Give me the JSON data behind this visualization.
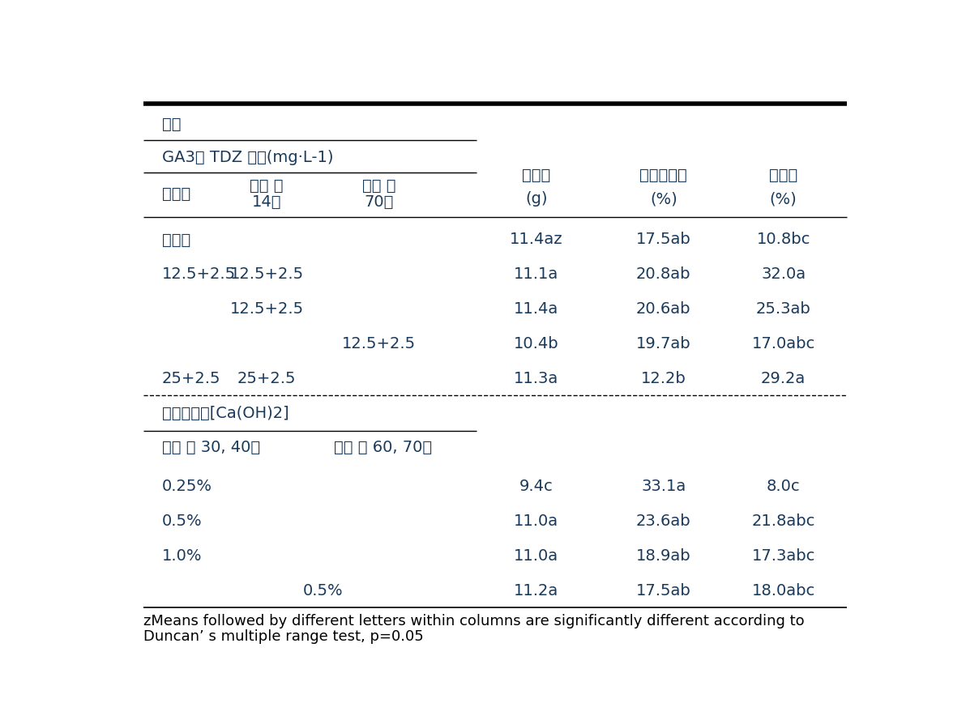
{
  "background_color": "#ffffff",
  "text_color": "#000000",
  "blue_color": "#1a3a5c",
  "figsize": [
    11.92,
    8.68
  ],
  "dpi": 100,
  "section1_header": "처리",
  "section1_subheader": "GA3및 TDZ 혼용(mg·L-1)",
  "col1_header_line1": "만개기",
  "col2_header_line1": "만개 후",
  "col2_header_line2": "14일",
  "col3_header_line1": "만개 후",
  "col3_header_line2": "70일",
  "col4_header_line1": "과립중",
  "col4_header_line2": "(g)",
  "col5_header_line1": "무른과립율",
  "col5_header_line2": "(%)",
  "col6_header_line1": "열과율",
  "col6_header_line2": "(%)",
  "section2_header": "수산화칼슈[Ca(OH)2]",
  "col2b_header": "만개 후 30, 40일",
  "col3b_header": "만개 후 60, 70일",
  "footnote_line1": "zMeans followed by different letters within columns are significantly different according to",
  "footnote_line2": "Duncan’ s multiple range test, p=0.05",
  "rows_section1": [
    {
      "col1": "무처리",
      "col2": "",
      "col3": "",
      "col4": "11.4az",
      "col5": "17.5ab",
      "col6": "10.8bc"
    },
    {
      "col1": "12.5+2.5",
      "col2": "12.5+2.5",
      "col3": "",
      "col4": "11.1a",
      "col5": "20.8ab",
      "col6": "32.0a"
    },
    {
      "col1": "",
      "col2": "12.5+2.5",
      "col3": "",
      "col4": "11.4a",
      "col5": "20.6ab",
      "col6": "25.3ab"
    },
    {
      "col1": "",
      "col2": "",
      "col3": "12.5+2.5",
      "col4": "10.4b",
      "col5": "19.7ab",
      "col6": "17.0abc"
    },
    {
      "col1": "25+2.5",
      "col2": "25+2.5",
      "col3": "",
      "col4": "11.3a",
      "col5": "12.2b",
      "col6": "29.2a"
    }
  ],
  "rows_section2": [
    {
      "col1": "0.25%",
      "col2": "",
      "col3": "",
      "col4": "9.4c",
      "col5": "33.1a",
      "col6": "8.0c"
    },
    {
      "col1": "0.5%",
      "col2": "",
      "col3": "",
      "col4": "11.0a",
      "col5": "23.6ab",
      "col6": "21.8abc"
    },
    {
      "col1": "1.0%",
      "col2": "",
      "col3": "",
      "col4": "11.0a",
      "col5": "18.9ab",
      "col6": "17.3abc"
    },
    {
      "col1": "",
      "col2": "0.5%",
      "col3": "",
      "col4": "11.2a",
      "col5": "17.5ab",
      "col6": "18.0abc"
    }
  ]
}
